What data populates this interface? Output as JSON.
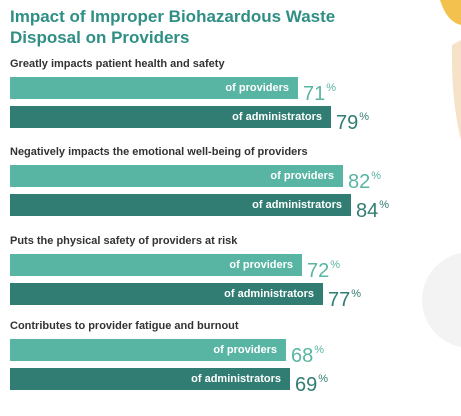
{
  "title": "Impact of Improper Biohazardous Waste Disposal on Providers",
  "chart_data": {
    "type": "bar",
    "orientation": "horizontal",
    "title": "Impact of Improper Biohazardous Waste Disposal on Providers",
    "unit": "%",
    "series_labels": [
      "of providers",
      "of administrators"
    ],
    "colors": {
      "providers": "#59b5a3",
      "administrators": "#317d73",
      "title": "#2f8f85"
    },
    "groups": [
      {
        "question": "Greatly impacts patient health and safety",
        "providers": 71,
        "administrators": 79
      },
      {
        "question": "Negatively impacts the emotional well-being of providers",
        "providers": 82,
        "administrators": 84
      },
      {
        "question": "Puts the physical safety of providers at risk",
        "providers": 72,
        "administrators": 77
      },
      {
        "question": "Contributes to provider fatigue and burnout",
        "providers": 68,
        "administrators": 69
      }
    ]
  }
}
